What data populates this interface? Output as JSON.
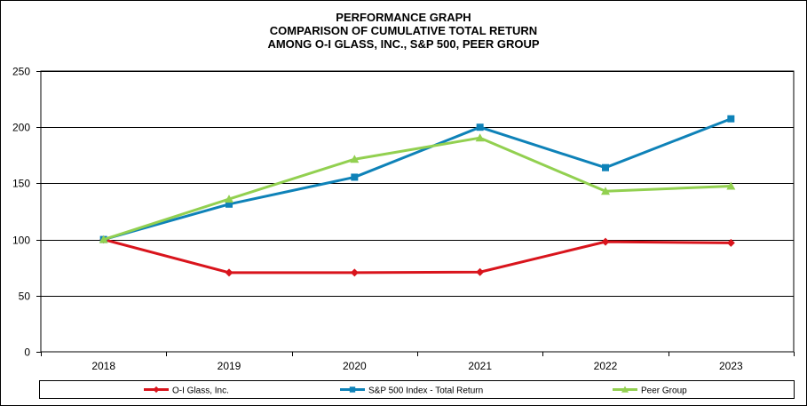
{
  "chart_data": {
    "type": "line",
    "title_lines": [
      "PERFORMANCE GRAPH",
      "COMPARISON OF CUMULATIVE TOTAL RETURN",
      "AMONG O-I GLASS, INC., S&P 500, PEER GROUP"
    ],
    "categories": [
      "2018",
      "2019",
      "2020",
      "2021",
      "2022",
      "2023"
    ],
    "ylim": [
      0,
      250
    ],
    "yticks": [
      0,
      50,
      100,
      150,
      200,
      250
    ],
    "grid": true,
    "legend_position": "bottom",
    "series": [
      {
        "name": "O-I Glass, Inc.",
        "color": "#D9141C",
        "marker": "diamond",
        "values": [
          100,
          70.5,
          70.5,
          71,
          98,
          97
        ]
      },
      {
        "name": "S&P 500 Index - Total Return",
        "color": "#0E82B8",
        "marker": "square",
        "values": [
          100,
          131.5,
          155.5,
          200,
          164,
          207.5
        ]
      },
      {
        "name": "Peer Group",
        "color": "#92D050",
        "marker": "triangle",
        "values": [
          100,
          136,
          171.5,
          190.5,
          143,
          147.5
        ]
      }
    ]
  }
}
